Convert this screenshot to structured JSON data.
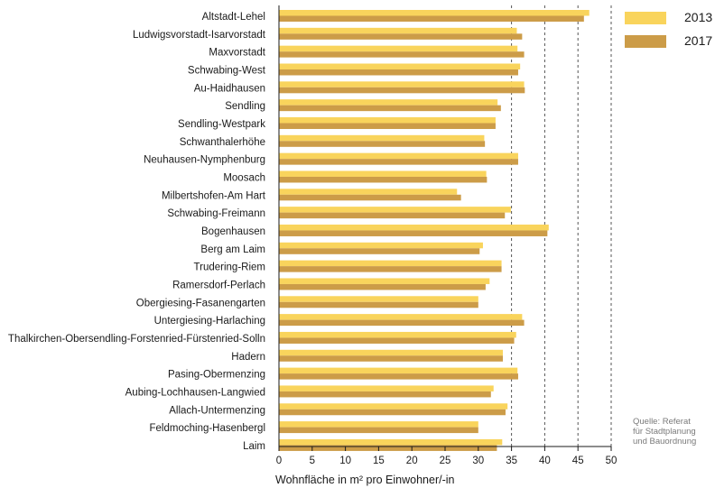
{
  "chart_data": {
    "type": "bar",
    "orientation": "horizontal",
    "categories": [
      "Altstadt-Lehel",
      "Ludwigsvorstadt-Isarvorstadt",
      "Maxvorstadt",
      "Schwabing-West",
      "Au-Haidhausen",
      "Sendling",
      "Sendling-Westpark",
      "Schwanthalerhöhe",
      "Neuhausen-Nymphenburg",
      "Moosach",
      "Milbertshofen-Am Hart",
      "Schwabing-Freimann",
      "Bogenhausen",
      "Berg am Laim",
      "Trudering-Riem",
      "Ramersdorf-Perlach",
      "Obergiesing-Fasanengarten",
      "Untergiesing-Harlaching",
      "Thalkirchen-Obersendling-Forstenried-Fürstenried-Solln",
      "Hadern",
      "Pasing-Obermenzing",
      "Aubing-Lochhausen-Langwied",
      "Allach-Untermenzing",
      "Feldmoching-Hasenbergl",
      "Laim"
    ],
    "series": [
      {
        "name": "2013",
        "color": "#f9d45c",
        "values": [
          46.7,
          35.8,
          35.9,
          36.3,
          36.9,
          32.9,
          32.6,
          30.9,
          36.0,
          31.2,
          26.8,
          34.9,
          40.6,
          30.7,
          33.5,
          31.7,
          30.0,
          36.6,
          35.7,
          33.7,
          35.9,
          32.3,
          34.4,
          30.0,
          33.6
        ]
      },
      {
        "name": "2017",
        "color": "#cc9c48",
        "values": [
          45.9,
          36.6,
          36.9,
          36.0,
          37.0,
          33.4,
          32.6,
          31.0,
          36.0,
          31.3,
          27.4,
          34.0,
          40.4,
          30.2,
          33.5,
          31.1,
          30.0,
          36.9,
          35.4,
          33.7,
          36.0,
          31.9,
          34.1,
          30.0,
          32.8
        ]
      }
    ],
    "xlabel": "Wohnfläche in m² pro Einwohner/-in",
    "xlim": [
      0,
      50
    ],
    "xticks": [
      "0",
      "5",
      "10",
      "15",
      "20",
      "25",
      "30",
      "35",
      "40",
      "45",
      "50"
    ],
    "grid": "vertical dashed lines at 35, 40, 45, 50",
    "legend": "top-right"
  },
  "legend_items": [
    {
      "label": "2013",
      "color": "#f9d45c"
    },
    {
      "label": "2017",
      "color": "#cc9c48"
    }
  ],
  "source": [
    "Quelle: Referat",
    "für Stadtplanung",
    "und Bauordnung"
  ]
}
